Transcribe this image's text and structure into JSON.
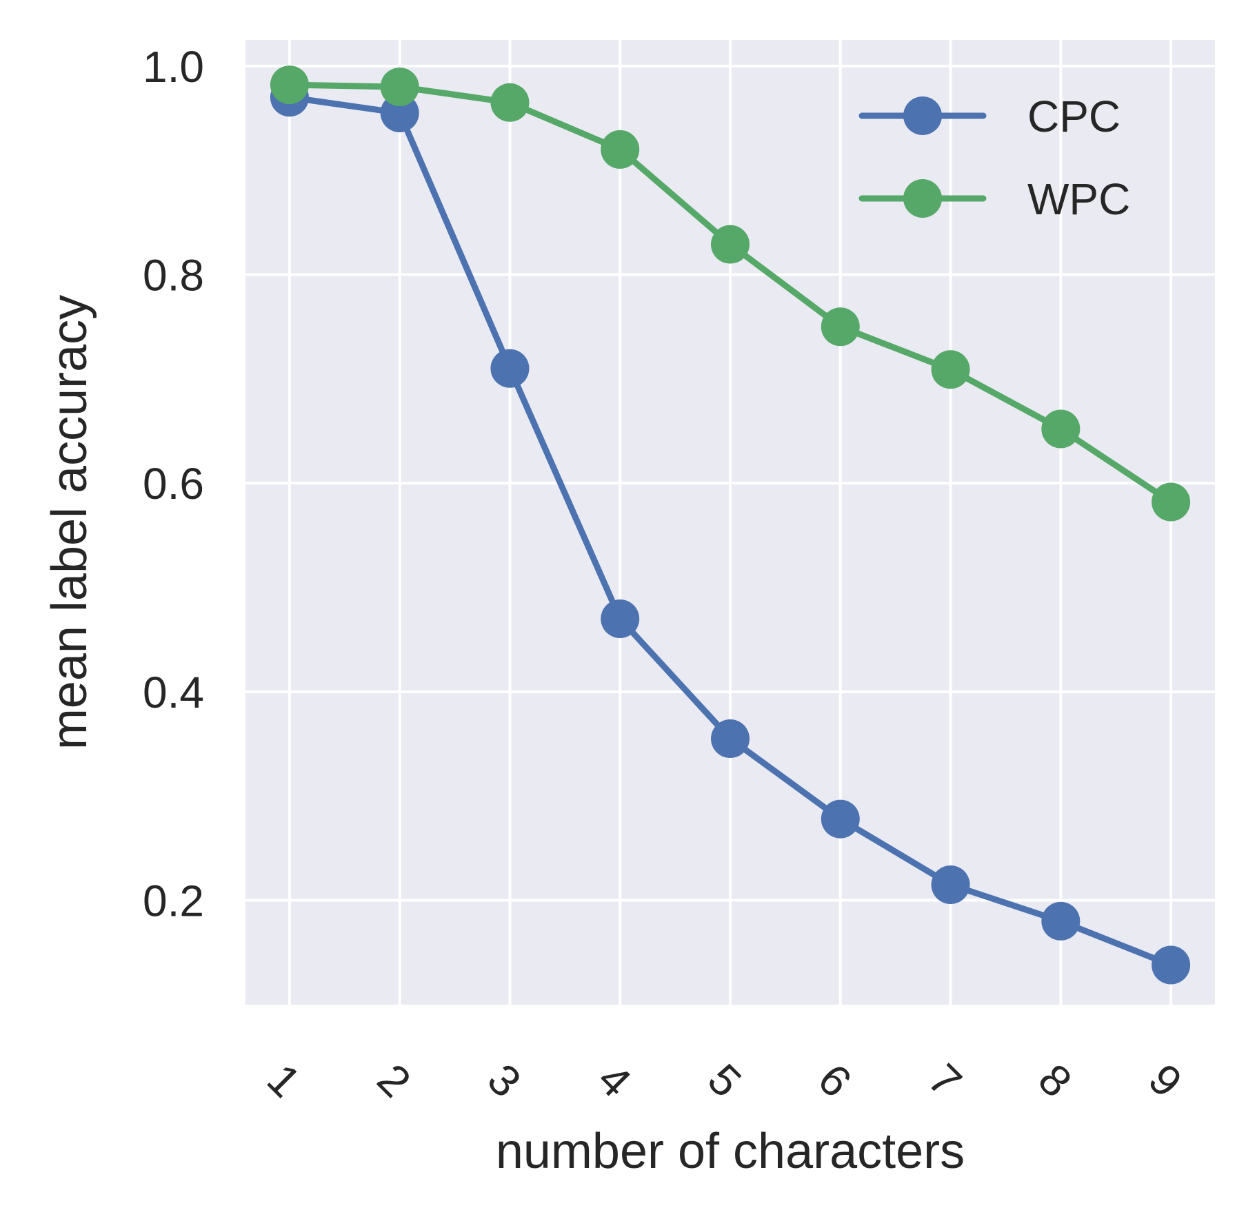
{
  "chart_data": {
    "type": "line",
    "title": "",
    "xlabel": "number of characters",
    "ylabel": "mean label accuracy",
    "x": [
      1,
      2,
      3,
      4,
      5,
      6,
      7,
      8,
      9
    ],
    "x_tick_labels": [
      "1",
      "2",
      "3",
      "4",
      "5",
      "6",
      "7",
      "8",
      "9"
    ],
    "x_tick_rotation": "45deg",
    "y_ticks": [
      0.2,
      0.4,
      0.6,
      0.8,
      1.0
    ],
    "y_tick_labels": [
      "0.2",
      "0.4",
      "0.6",
      "0.8",
      "1.0"
    ],
    "xlim": [
      0.6,
      9.4
    ],
    "ylim": [
      0.1,
      1.025
    ],
    "grid": true,
    "background": "#eaeaf2",
    "grid_color": "#ffffff",
    "legend_position": "top-right",
    "series": [
      {
        "name": "CPC",
        "color": "#4c72b0",
        "marker": "circle",
        "values": [
          0.97,
          0.955,
          0.71,
          0.47,
          0.355,
          0.278,
          0.215,
          0.18,
          0.138
        ]
      },
      {
        "name": "WPC",
        "color": "#55a868",
        "marker": "circle",
        "values": [
          0.982,
          0.98,
          0.965,
          0.92,
          0.829,
          0.75,
          0.709,
          0.652,
          0.582
        ]
      }
    ]
  }
}
